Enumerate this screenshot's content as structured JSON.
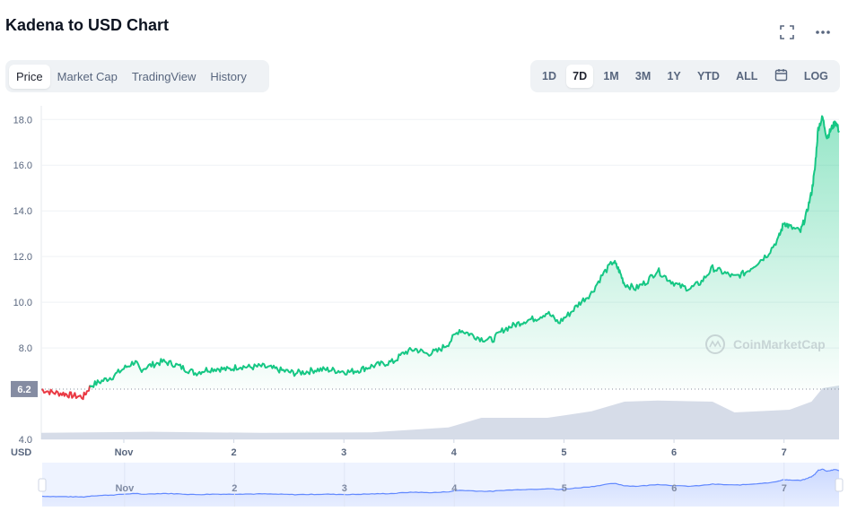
{
  "title": "Kadena to USD Chart",
  "tabs": [
    {
      "label": "Price",
      "active": true
    },
    {
      "label": "Market Cap",
      "active": false
    },
    {
      "label": "TradingView",
      "active": false
    },
    {
      "label": "History",
      "active": false
    }
  ],
  "ranges": [
    {
      "label": "1D",
      "active": false
    },
    {
      "label": "7D",
      "active": true
    },
    {
      "label": "1M",
      "active": false
    },
    {
      "label": "3M",
      "active": false
    },
    {
      "label": "1Y",
      "active": false
    },
    {
      "label": "YTD",
      "active": false
    },
    {
      "label": "ALL",
      "active": false
    }
  ],
  "log_label": "LOG",
  "icons": {
    "fullscreen": "fullscreen-icon",
    "more": "more-icon",
    "calendar": "calendar-icon",
    "logo": "coinmarketcap-logo-icon"
  },
  "watermark": "CoinMarketCap",
  "colors": {
    "up": "#16c784",
    "down": "#ea3943",
    "volume": "#cfd6e4",
    "nav_line": "#6188ff"
  },
  "chart_data": {
    "type": "area",
    "x_label": "USD",
    "y_ticks": [
      "18.0",
      "16.0",
      "14.0",
      "12.0",
      "10.0",
      "8.0",
      "4.0"
    ],
    "x_ticks": [
      "Nov",
      "2",
      "3",
      "4",
      "5",
      "6",
      "7"
    ],
    "nav_ticks": [
      "Nov",
      "2",
      "3",
      "4",
      "5",
      "6",
      "7"
    ],
    "ylim": [
      4.0,
      18.6
    ],
    "open_price": 6.2,
    "open_label": "6.2",
    "series": [
      {
        "x": 0.0,
        "y": 6.18
      },
      {
        "x": 0.1,
        "y": 6.05
      },
      {
        "x": 0.2,
        "y": 6.0
      },
      {
        "x": 0.28,
        "y": 5.92
      },
      {
        "x": 0.38,
        "y": 5.85
      },
      {
        "x": 0.45,
        "y": 6.35
      },
      {
        "x": 0.55,
        "y": 6.55
      },
      {
        "x": 0.65,
        "y": 6.75
      },
      {
        "x": 0.75,
        "y": 7.1
      },
      {
        "x": 0.85,
        "y": 7.4
      },
      {
        "x": 0.9,
        "y": 7.05
      },
      {
        "x": 1.0,
        "y": 7.25
      },
      {
        "x": 1.1,
        "y": 7.4
      },
      {
        "x": 1.2,
        "y": 7.3
      },
      {
        "x": 1.3,
        "y": 7.1
      },
      {
        "x": 1.4,
        "y": 6.9
      },
      {
        "x": 1.5,
        "y": 7.05
      },
      {
        "x": 1.6,
        "y": 7.1
      },
      {
        "x": 1.7,
        "y": 7.05
      },
      {
        "x": 1.8,
        "y": 7.2
      },
      {
        "x": 1.9,
        "y": 7.15
      },
      {
        "x": 2.0,
        "y": 7.2
      },
      {
        "x": 2.1,
        "y": 7.1
      },
      {
        "x": 2.2,
        "y": 7.0
      },
      {
        "x": 2.3,
        "y": 6.9
      },
      {
        "x": 2.4,
        "y": 6.95
      },
      {
        "x": 2.5,
        "y": 7.05
      },
      {
        "x": 2.6,
        "y": 7.05
      },
      {
        "x": 2.7,
        "y": 7.0
      },
      {
        "x": 2.8,
        "y": 6.95
      },
      {
        "x": 2.9,
        "y": 7.05
      },
      {
        "x": 3.0,
        "y": 7.2
      },
      {
        "x": 3.1,
        "y": 7.3
      },
      {
        "x": 3.2,
        "y": 7.4
      },
      {
        "x": 3.3,
        "y": 7.8
      },
      {
        "x": 3.4,
        "y": 7.95
      },
      {
        "x": 3.5,
        "y": 7.75
      },
      {
        "x": 3.6,
        "y": 7.85
      },
      {
        "x": 3.7,
        "y": 8.2
      },
      {
        "x": 3.8,
        "y": 8.8
      },
      {
        "x": 3.9,
        "y": 8.6
      },
      {
        "x": 4.0,
        "y": 8.4
      },
      {
        "x": 4.1,
        "y": 8.35
      },
      {
        "x": 4.2,
        "y": 8.8
      },
      {
        "x": 4.3,
        "y": 9.0
      },
      {
        "x": 4.4,
        "y": 9.2
      },
      {
        "x": 4.5,
        "y": 9.3
      },
      {
        "x": 4.6,
        "y": 9.55
      },
      {
        "x": 4.7,
        "y": 9.1
      },
      {
        "x": 4.8,
        "y": 9.5
      },
      {
        "x": 4.9,
        "y": 10.0
      },
      {
        "x": 5.0,
        "y": 10.4
      },
      {
        "x": 5.1,
        "y": 11.2
      },
      {
        "x": 5.2,
        "y": 11.8
      },
      {
        "x": 5.25,
        "y": 11.4
      },
      {
        "x": 5.3,
        "y": 10.8
      },
      {
        "x": 5.4,
        "y": 10.6
      },
      {
        "x": 5.5,
        "y": 10.9
      },
      {
        "x": 5.6,
        "y": 11.4
      },
      {
        "x": 5.7,
        "y": 11.0
      },
      {
        "x": 5.8,
        "y": 10.7
      },
      {
        "x": 5.9,
        "y": 10.6
      },
      {
        "x": 6.0,
        "y": 10.9
      },
      {
        "x": 6.1,
        "y": 11.5
      },
      {
        "x": 6.2,
        "y": 11.3
      },
      {
        "x": 6.3,
        "y": 11.1
      },
      {
        "x": 6.4,
        "y": 11.3
      },
      {
        "x": 6.5,
        "y": 11.7
      },
      {
        "x": 6.6,
        "y": 12.1
      },
      {
        "x": 6.7,
        "y": 12.8
      },
      {
        "x": 6.75,
        "y": 13.5
      },
      {
        "x": 6.8,
        "y": 13.3
      },
      {
        "x": 6.9,
        "y": 13.1
      },
      {
        "x": 6.95,
        "y": 13.8
      },
      {
        "x": 7.0,
        "y": 14.8
      },
      {
        "x": 7.03,
        "y": 15.8
      },
      {
        "x": 7.06,
        "y": 17.6
      },
      {
        "x": 7.1,
        "y": 18.1
      },
      {
        "x": 7.14,
        "y": 17.2
      },
      {
        "x": 7.18,
        "y": 17.6
      },
      {
        "x": 7.22,
        "y": 17.9
      },
      {
        "x": 7.25,
        "y": 17.5
      }
    ],
    "volume": [
      {
        "x": 0.0,
        "v": 0.12
      },
      {
        "x": 1.0,
        "v": 0.14
      },
      {
        "x": 2.0,
        "v": 0.12
      },
      {
        "x": 3.0,
        "v": 0.13
      },
      {
        "x": 3.7,
        "v": 0.22
      },
      {
        "x": 4.0,
        "v": 0.4
      },
      {
        "x": 4.6,
        "v": 0.4
      },
      {
        "x": 5.0,
        "v": 0.52
      },
      {
        "x": 5.3,
        "v": 0.7
      },
      {
        "x": 5.6,
        "v": 0.72
      },
      {
        "x": 6.1,
        "v": 0.7
      },
      {
        "x": 6.3,
        "v": 0.5
      },
      {
        "x": 6.8,
        "v": 0.55
      },
      {
        "x": 7.0,
        "v": 0.7
      },
      {
        "x": 7.1,
        "v": 0.95
      },
      {
        "x": 7.25,
        "v": 1.0
      }
    ]
  }
}
